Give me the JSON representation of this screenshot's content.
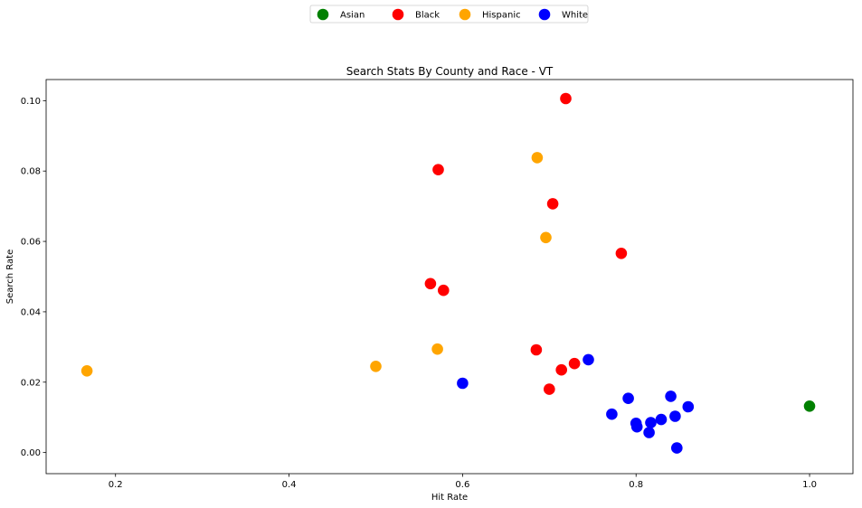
{
  "chart_data": {
    "type": "scatter",
    "title": "Search Stats By County and Race - VT",
    "xlabel": "Hit Rate",
    "ylabel": "Search Rate",
    "xlim": [
      0.12,
      1.05
    ],
    "ylim": [
      -0.006,
      0.106
    ],
    "xticks": [
      0.2,
      0.4,
      0.6,
      0.8,
      1.0
    ],
    "xtick_labels": [
      "0.2",
      "0.4",
      "0.6",
      "0.8",
      "1.0"
    ],
    "yticks": [
      0.0,
      0.02,
      0.04,
      0.06,
      0.08,
      0.1
    ],
    "ytick_labels": [
      "0.00",
      "0.02",
      "0.04",
      "0.06",
      "0.08",
      "0.10"
    ],
    "grid": false,
    "legend_position": "top-center",
    "series": [
      {
        "name": "Asian",
        "color": "#008000",
        "points": [
          [
            1.0,
            0.0132
          ]
        ]
      },
      {
        "name": "Black",
        "color": "#ff0000",
        "points": [
          [
            0.719,
            0.1006
          ],
          [
            0.572,
            0.0804
          ],
          [
            0.704,
            0.0707
          ],
          [
            0.783,
            0.0566
          ],
          [
            0.563,
            0.048
          ],
          [
            0.578,
            0.0461
          ],
          [
            0.685,
            0.0292
          ],
          [
            0.729,
            0.0253
          ],
          [
            0.714,
            0.0235
          ],
          [
            0.7,
            0.018
          ]
        ]
      },
      {
        "name": "Hispanic",
        "color": "#ffa500",
        "points": [
          [
            0.686,
            0.0838
          ],
          [
            0.696,
            0.0611
          ],
          [
            0.571,
            0.0294
          ],
          [
            0.5,
            0.0245
          ],
          [
            0.167,
            0.0232
          ]
        ]
      },
      {
        "name": "White",
        "color": "#0000ff",
        "points": [
          [
            0.6,
            0.0197
          ],
          [
            0.745,
            0.0264
          ],
          [
            0.791,
            0.0154
          ],
          [
            0.772,
            0.0109
          ],
          [
            0.8,
            0.0083
          ],
          [
            0.801,
            0.0073
          ],
          [
            0.817,
            0.0085
          ],
          [
            0.829,
            0.0094
          ],
          [
            0.84,
            0.016
          ],
          [
            0.845,
            0.0103
          ],
          [
            0.86,
            0.013
          ],
          [
            0.815,
            0.0057
          ],
          [
            0.847,
            0.0013
          ]
        ]
      }
    ]
  }
}
